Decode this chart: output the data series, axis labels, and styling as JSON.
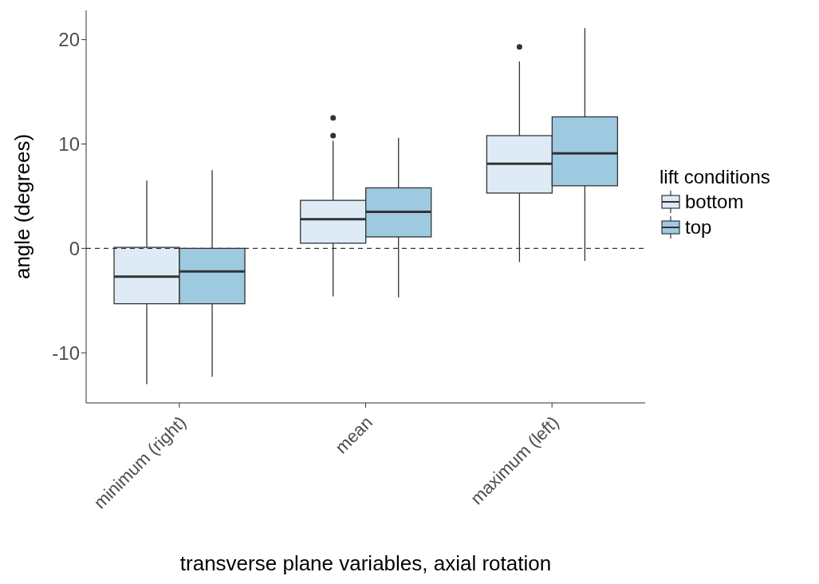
{
  "chart_data": {
    "type": "box",
    "xlabel": "transverse plane variables, axial rotation",
    "ylabel": "angle (degrees)",
    "legend_title": "lift conditions",
    "legend": "right",
    "categories": [
      "minimum (right)",
      "mean",
      "maximum (left)"
    ],
    "ylim": [
      -14.8,
      22.8
    ],
    "yticks": [
      -10,
      0,
      10,
      20
    ],
    "ref_lines": [
      {
        "axis": "y",
        "value": 0,
        "line_style": "dashed",
        "color": "#333333"
      }
    ],
    "series": [
      {
        "name": "bottom",
        "color": "#deebf7",
        "boxes": [
          {
            "low": -13.0,
            "q1": -5.3,
            "median": -2.7,
            "q3": 0.1,
            "high": 6.5
          },
          {
            "low": -4.6,
            "q1": 0.5,
            "median": 2.8,
            "q3": 4.6,
            "high": 10.3,
            "outliers": [
              10.8,
              12.5
            ]
          },
          {
            "low": -1.3,
            "q1": 5.3,
            "median": 8.1,
            "q3": 10.8,
            "high": 17.9,
            "outliers": [
              19.3
            ]
          }
        ]
      },
      {
        "name": "top",
        "color": "#9ecae1",
        "boxes": [
          {
            "low": -12.3,
            "q1": -5.3,
            "median": -2.2,
            "q3": 0.0,
            "high": 7.5
          },
          {
            "low": -4.7,
            "q1": 1.1,
            "median": 3.5,
            "q3": 5.8,
            "high": 10.6
          },
          {
            "low": -1.2,
            "q1": 6.0,
            "median": 9.1,
            "q3": 12.6,
            "high": 21.1
          }
        ]
      }
    ]
  }
}
